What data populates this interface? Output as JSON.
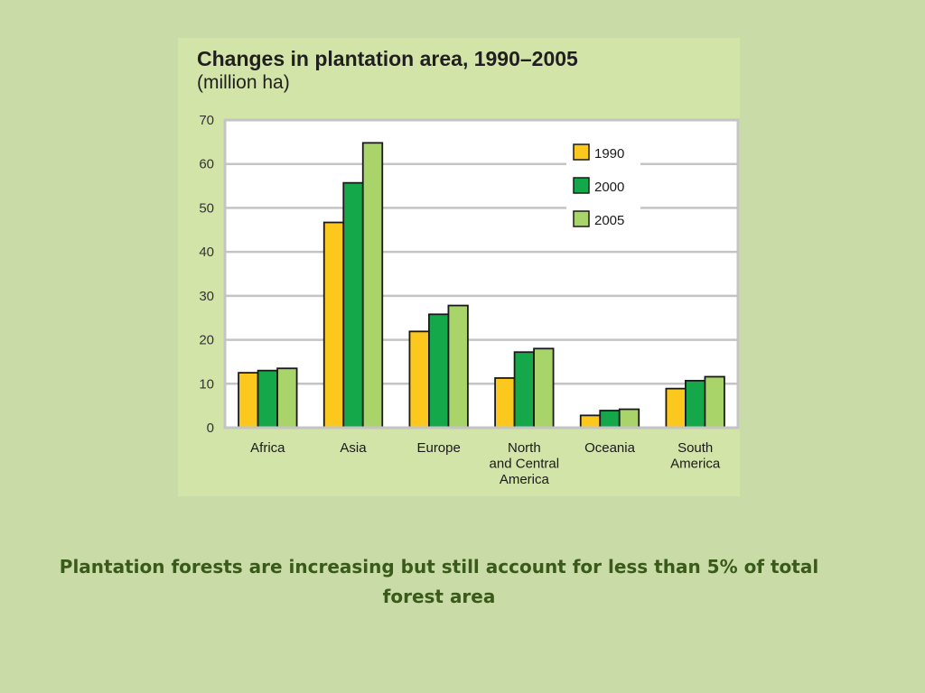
{
  "colors": {
    "background": "#c9dba7",
    "panel": "#d3e4a9",
    "plot_area": "#ffffff",
    "grid": "#c4c4c4",
    "caption_text": "#3a5a1a"
  },
  "chart_data": {
    "type": "bar",
    "title": "Changes in plantation area, 1990–2005",
    "subtitle": "(million ha)",
    "categories": [
      [
        "Africa"
      ],
      [
        "Asia"
      ],
      [
        "Europe"
      ],
      [
        "North",
        "and Central",
        "America"
      ],
      [
        "Oceania"
      ],
      [
        "South",
        "America"
      ]
    ],
    "series": [
      {
        "name": "1990",
        "color": "#fcc81e",
        "values": [
          12.5,
          46.7,
          21.9,
          11.3,
          2.8,
          8.9
        ]
      },
      {
        "name": "2000",
        "color": "#15a84a",
        "values": [
          13.0,
          55.7,
          25.8,
          17.2,
          3.9,
          10.7
        ]
      },
      {
        "name": "2005",
        "color": "#a8d46a",
        "values": [
          13.5,
          64.8,
          27.8,
          18.0,
          4.2,
          11.6
        ]
      }
    ],
    "ylim": [
      0,
      70
    ],
    "yticks": [
      0,
      10,
      20,
      30,
      40,
      50,
      60,
      70
    ],
    "xlabel": "",
    "ylabel": "",
    "grid": true,
    "legend_position": "top-right"
  },
  "caption": "Plantation forests are increasing but still account for less than 5% of total forest area"
}
